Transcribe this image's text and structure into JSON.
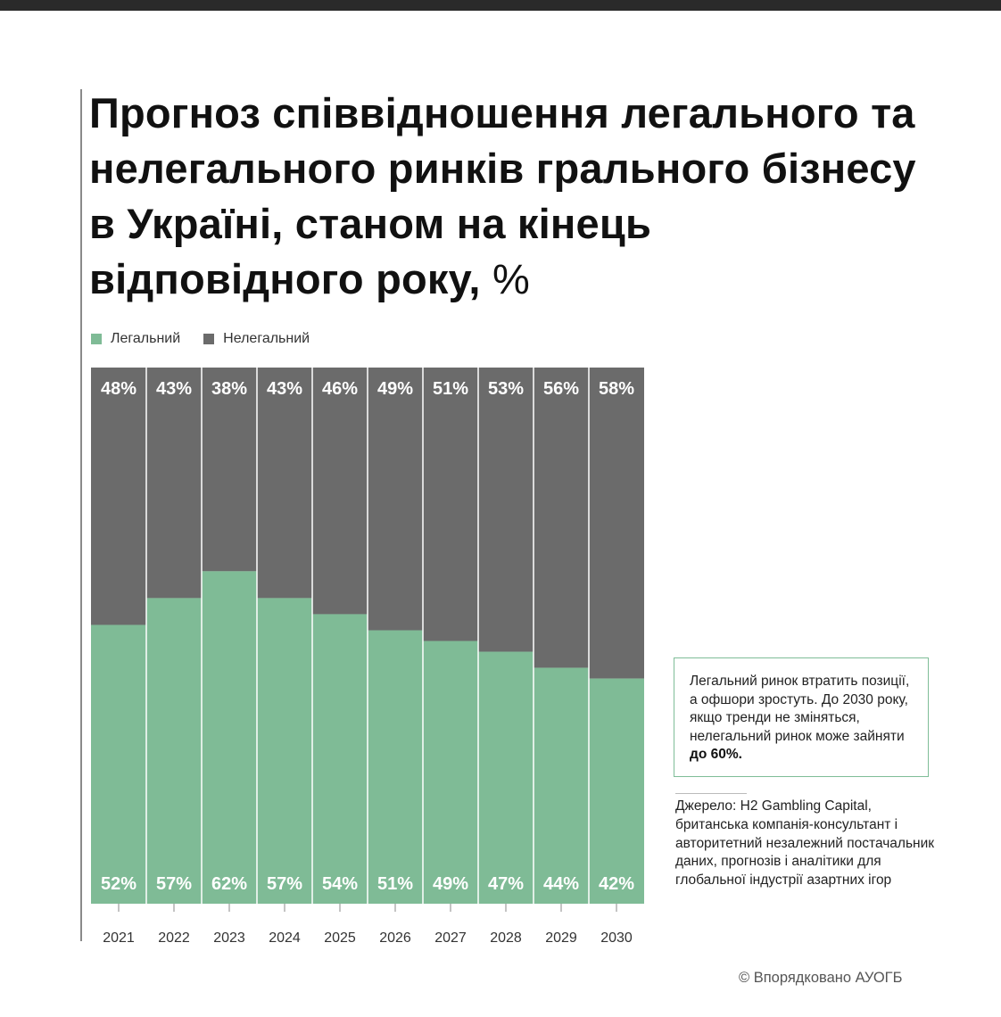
{
  "header": {
    "title": "Прогноз співвідношення легального та нелегального ринків грального бізнесу в Україні, станом на кінець відповідного року,",
    "unit": "%"
  },
  "legend": {
    "legal": "Легальний",
    "illegal": "Нелегальний"
  },
  "colors": {
    "legal": "#7fbb96",
    "illegal": "#6b6b6b",
    "label": "#ffffff"
  },
  "chart_data": {
    "type": "bar",
    "stacked": true,
    "title": "Прогноз співвідношення легального та нелегального ринків грального бізнесу в Україні, станом на кінець відповідного року, %",
    "categories": [
      "2021",
      "2022",
      "2023",
      "2024",
      "2025",
      "2026",
      "2027",
      "2028",
      "2029",
      "2030"
    ],
    "series": [
      {
        "name": "Легальний",
        "values": [
          52,
          57,
          62,
          57,
          54,
          51,
          49,
          47,
          44,
          42
        ]
      },
      {
        "name": "Нелегальний",
        "values": [
          48,
          43,
          38,
          43,
          46,
          49,
          51,
          53,
          56,
          58
        ]
      }
    ],
    "ylim": [
      0,
      100
    ],
    "xlabel": "",
    "ylabel": "",
    "grid": false,
    "legend_position": "top-left"
  },
  "note": {
    "text": "Легальний ринок втратить позиції, а офшори зростуть. До 2030 року, якщо тренди не зміняться, нелегальний ринок може зайняти",
    "highlight": "до 60%."
  },
  "source": {
    "text": "Джерело: H2 Gambling Capital, британська компанія-консультант і авторитетний незалежний постачальник даних, прогнозів і аналітики для глобальної індустрії азартних ігор"
  },
  "footer": {
    "copyright": "© Впорядковано АУОГБ"
  }
}
